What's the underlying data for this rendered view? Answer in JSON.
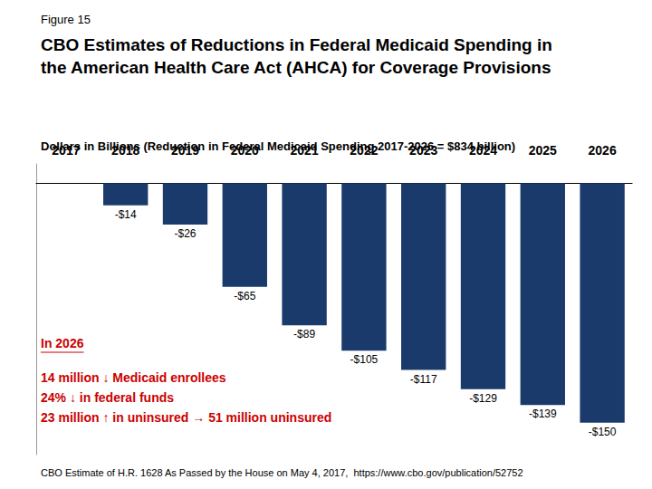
{
  "chart_data": {
    "type": "bar",
    "figure_label": "Figure 15",
    "title": "CBO Estimates of Reductions in Federal Medicaid Spending in\nthe American Health Care Act (AHCA) for Coverage Provisions",
    "subtitle": "Dollars in Billions (Reduction in Federal Medicaid Spending 2017-2026 = $834 billion)",
    "footer": "CBO Estimate of H.R. 1628 As Passed by the House on May 4, 2017,  https://www.cbo.gov/publication/52752",
    "categories": [
      "2017",
      "2018",
      "2019",
      "2020",
      "2021",
      "2022",
      "2023",
      "2024",
      "2025",
      "2026"
    ],
    "values": [
      0,
      -14,
      -26,
      -65,
      -89,
      -105,
      -117,
      -129,
      -139,
      -150
    ],
    "value_labels": [
      null,
      "-$14",
      "-$26",
      "-$65",
      "-$89",
      "-$105",
      "-$117",
      "-$129",
      "-$139",
      "-$150"
    ],
    "data_labels": true,
    "color": "#1a3a6b",
    "ylim": [
      -170,
      12
    ],
    "tick_labels": "x",
    "grid": false,
    "annotations": [
      {
        "text": "In 2026",
        "color": "#cc0000"
      },
      {
        "text": "14 million ↓ Medicaid enrollees\n24% ↓ in federal funds\n23 million ↑ in uninsured → 51 million uninsured",
        "color": "#cc0000"
      }
    ]
  }
}
